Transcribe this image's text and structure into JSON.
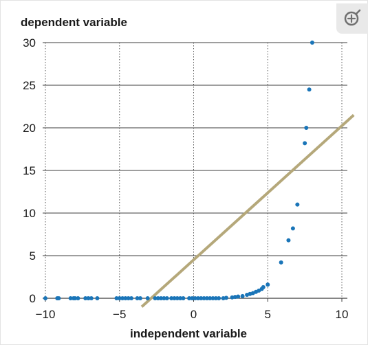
{
  "chart_data": {
    "type": "scatter",
    "title": "",
    "xlabel": "independent variable",
    "ylabel": "dependent variable",
    "xlim": [
      -10,
      10
    ],
    "ylim": [
      0,
      30
    ],
    "x_ticks": [
      -10,
      -5,
      0,
      5,
      10
    ],
    "x_tick_labels": [
      "−10",
      "−5",
      "0",
      "5",
      "10"
    ],
    "y_ticks": [
      0,
      5,
      10,
      15,
      20,
      25,
      30
    ],
    "y_tick_labels": [
      "0",
      "5",
      "10",
      "15",
      "20",
      "25",
      "30"
    ],
    "grid": {
      "horizontal": "solid",
      "vertical": "dotted"
    },
    "point_color": "#1a75b8",
    "line_color": "#b5a87a",
    "points": [
      {
        "x": -10.0,
        "y": 0
      },
      {
        "x": -9.2,
        "y": 0
      },
      {
        "x": -9.1,
        "y": 0
      },
      {
        "x": -8.3,
        "y": 0
      },
      {
        "x": -8.1,
        "y": 0
      },
      {
        "x": -8.0,
        "y": 0
      },
      {
        "x": -7.8,
        "y": 0
      },
      {
        "x": -7.3,
        "y": 0
      },
      {
        "x": -7.1,
        "y": 0
      },
      {
        "x": -6.9,
        "y": 0
      },
      {
        "x": -6.5,
        "y": 0
      },
      {
        "x": -5.2,
        "y": 0
      },
      {
        "x": -5.0,
        "y": 0
      },
      {
        "x": -4.8,
        "y": 0
      },
      {
        "x": -4.6,
        "y": 0
      },
      {
        "x": -4.4,
        "y": 0
      },
      {
        "x": -4.2,
        "y": 0
      },
      {
        "x": -3.8,
        "y": 0
      },
      {
        "x": -3.6,
        "y": 0
      },
      {
        "x": -3.1,
        "y": 0
      },
      {
        "x": -2.6,
        "y": 0
      },
      {
        "x": -2.4,
        "y": 0
      },
      {
        "x": -2.2,
        "y": 0
      },
      {
        "x": -2.0,
        "y": 0
      },
      {
        "x": -1.8,
        "y": 0
      },
      {
        "x": -1.5,
        "y": 0
      },
      {
        "x": -1.3,
        "y": 0
      },
      {
        "x": -1.1,
        "y": 0
      },
      {
        "x": -0.9,
        "y": 0
      },
      {
        "x": -0.7,
        "y": 0
      },
      {
        "x": -0.3,
        "y": 0
      },
      {
        "x": -0.1,
        "y": 0
      },
      {
        "x": 0.1,
        "y": 0
      },
      {
        "x": 0.3,
        "y": 0
      },
      {
        "x": 0.5,
        "y": 0
      },
      {
        "x": 0.7,
        "y": 0
      },
      {
        "x": 0.9,
        "y": 0
      },
      {
        "x": 1.1,
        "y": 0
      },
      {
        "x": 1.3,
        "y": 0
      },
      {
        "x": 1.5,
        "y": 0
      },
      {
        "x": 1.7,
        "y": 0
      },
      {
        "x": 2.0,
        "y": 0
      },
      {
        "x": 2.2,
        "y": 0.05
      },
      {
        "x": 2.6,
        "y": 0.1
      },
      {
        "x": 2.8,
        "y": 0.15
      },
      {
        "x": 3.0,
        "y": 0.2
      },
      {
        "x": 3.3,
        "y": 0.25
      },
      {
        "x": 3.6,
        "y": 0.4
      },
      {
        "x": 3.8,
        "y": 0.5
      },
      {
        "x": 4.0,
        "y": 0.6
      },
      {
        "x": 4.2,
        "y": 0.75
      },
      {
        "x": 4.4,
        "y": 0.9
      },
      {
        "x": 4.6,
        "y": 1.1
      },
      {
        "x": 4.7,
        "y": 1.3
      },
      {
        "x": 5.0,
        "y": 1.6
      },
      {
        "x": 5.9,
        "y": 4.2
      },
      {
        "x": 6.4,
        "y": 6.8
      },
      {
        "x": 6.7,
        "y": 8.2
      },
      {
        "x": 7.0,
        "y": 11.0
      },
      {
        "x": 7.5,
        "y": 18.2
      },
      {
        "x": 7.6,
        "y": 20.0
      },
      {
        "x": 7.8,
        "y": 24.5
      },
      {
        "x": 8.0,
        "y": 30.0
      }
    ],
    "line": {
      "type": "linear-fit",
      "x0": -3.5,
      "y0": -1,
      "x1": 10.8,
      "y1": 21.5
    }
  },
  "ui": {
    "zoom_icon": "zoom-in-icon"
  }
}
